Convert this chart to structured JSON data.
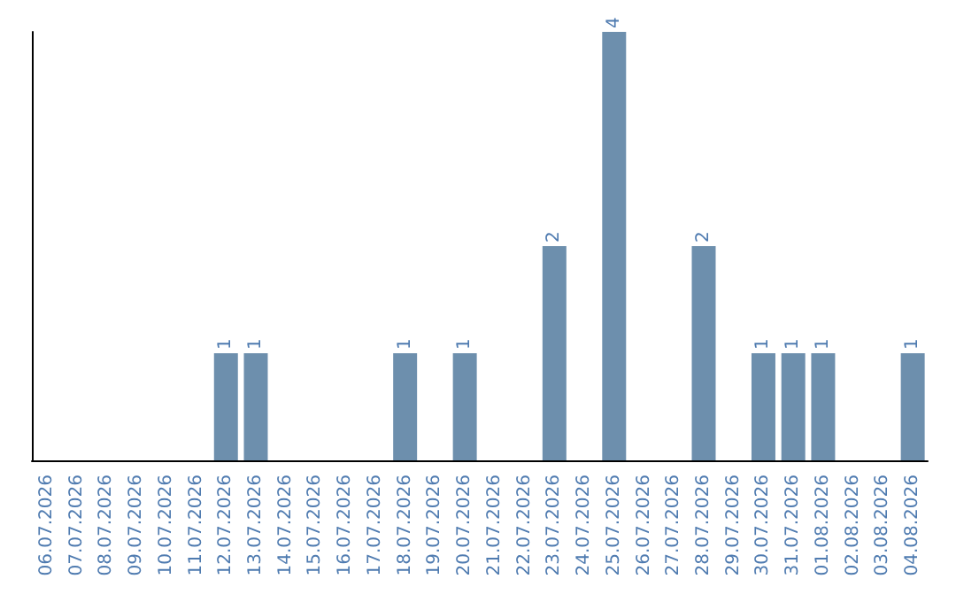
{
  "chart_data": {
    "type": "bar",
    "categories": [
      "06.07.2026",
      "07.07.2026",
      "08.07.2026",
      "09.07.2026",
      "10.07.2026",
      "11.07.2026",
      "12.07.2026",
      "13.07.2026",
      "14.07.2026",
      "15.07.2026",
      "16.07.2026",
      "17.07.2026",
      "18.07.2026",
      "19.07.2026",
      "20.07.2026",
      "21.07.2026",
      "22.07.2026",
      "23.07.2026",
      "24.07.2026",
      "25.07.2026",
      "26.07.2026",
      "27.07.2026",
      "28.07.2026",
      "29.07.2026",
      "30.07.2026",
      "31.07.2026",
      "01.08.2026",
      "02.08.2026",
      "03.08.2026",
      "04.08.2026"
    ],
    "values": [
      0,
      0,
      0,
      0,
      0,
      0,
      1,
      1,
      0,
      0,
      0,
      0,
      1,
      0,
      1,
      0,
      0,
      2,
      0,
      4,
      0,
      0,
      2,
      0,
      1,
      1,
      1,
      0,
      0,
      1
    ],
    "value_labels": [
      null,
      null,
      null,
      null,
      null,
      null,
      "1",
      "1",
      null,
      null,
      null,
      null,
      "1",
      null,
      "1",
      null,
      null,
      "2",
      null,
      "4",
      null,
      null,
      "2",
      null,
      "1",
      "1",
      "1",
      null,
      null,
      "1"
    ],
    "color": "#6d8fad",
    "ylim": [
      0,
      4
    ],
    "tick_labels": "x",
    "grid": false
  }
}
